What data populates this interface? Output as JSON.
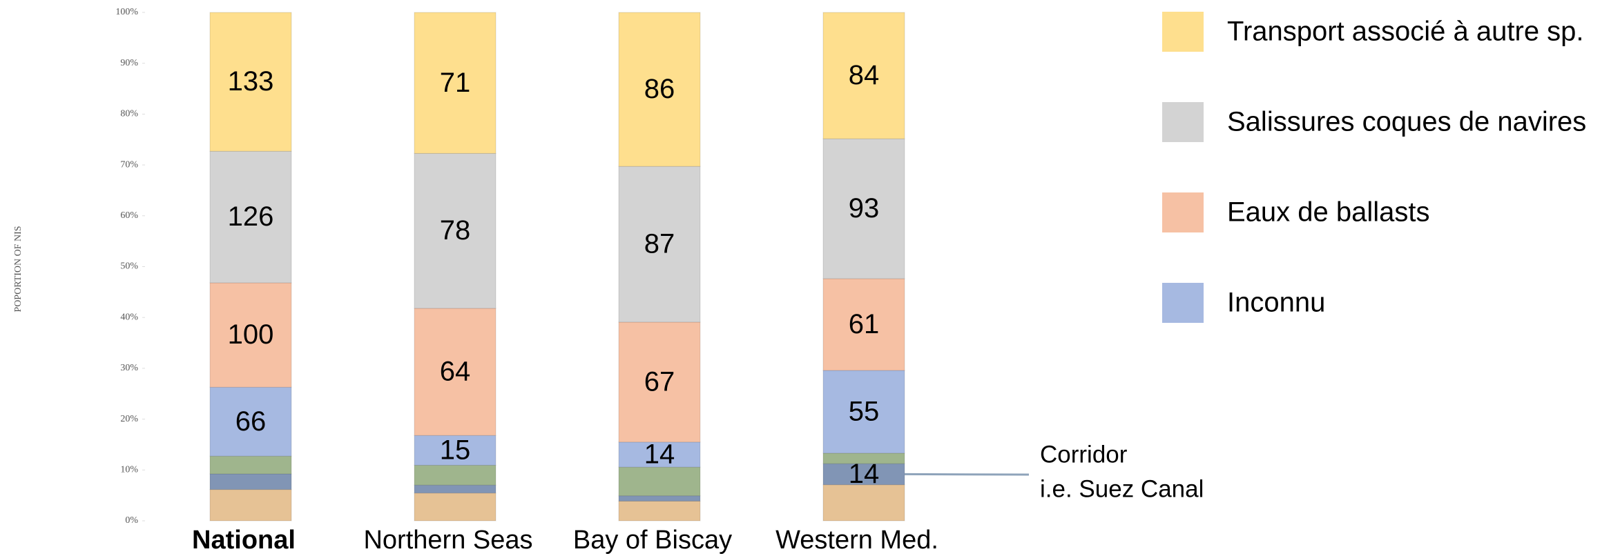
{
  "chart_data": {
    "type": "bar",
    "stacked": "percent",
    "y_axis_label": "POPORTION OF NIS",
    "categories": [
      "National",
      "Northern Seas",
      "Bay of Biscay",
      "Western Med."
    ],
    "ylim": [
      0,
      100
    ],
    "yticks": [
      {
        "value": 0,
        "label": "0%"
      },
      {
        "value": 10,
        "label": "10%"
      },
      {
        "value": 20,
        "label": "20%"
      },
      {
        "value": 30,
        "label": "30%"
      },
      {
        "value": 40,
        "label": "40%"
      },
      {
        "value": 50,
        "label": "50%"
      },
      {
        "value": 60,
        "label": "60%"
      },
      {
        "value": 70,
        "label": "70%"
      },
      {
        "value": 80,
        "label": "80%"
      },
      {
        "value": 90,
        "label": "90%"
      },
      {
        "value": 100,
        "label": "100%"
      }
    ],
    "series": [
      {
        "color": "#e6c295",
        "values": [
          30,
          14,
          11,
          24
        ]
      },
      {
        "color": "#8195b5",
        "values": [
          15,
          4,
          3,
          14
        ],
        "value_labels": [
          null,
          null,
          null,
          "14"
        ]
      },
      {
        "color": "#9fb58d",
        "values": [
          17,
          10,
          16,
          7
        ]
      },
      {
        "name": "Inconnu",
        "color": "#a6b9e1",
        "values": [
          66,
          15,
          14,
          55
        ]
      },
      {
        "name": "Eaux de ballasts",
        "color": "#f6c1a4",
        "values": [
          100,
          64,
          67,
          61
        ]
      },
      {
        "name": "Salissures coques de navires",
        "color": "#d3d3d3",
        "values": [
          126,
          78,
          87,
          93
        ]
      },
      {
        "name": "Transport associé à autre sp.",
        "color": "#fedf8e",
        "values": [
          133,
          71,
          86,
          84
        ]
      }
    ],
    "annotation": {
      "lines": [
        "Corridor",
        "i.e. Suez Canal"
      ],
      "points_to": {
        "series": 1,
        "category": 3
      }
    }
  }
}
